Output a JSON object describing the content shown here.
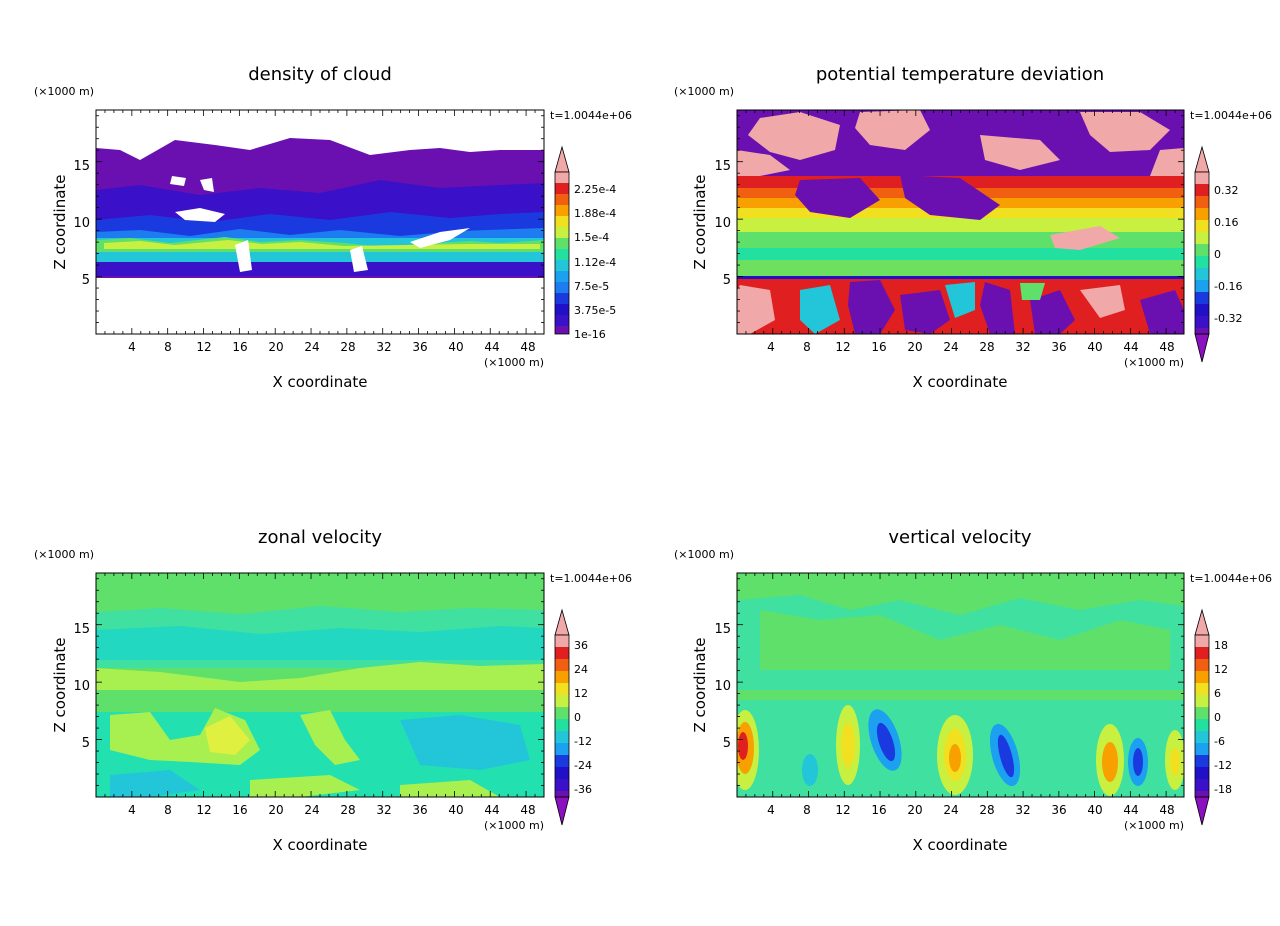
{
  "figure": {
    "panels": [
      {
        "title": "density of cloud",
        "xlabel": "X coordinate",
        "ylabel": "Z coordinate",
        "x_unit": "(×1000 m)",
        "y_unit": "(×1000 m)",
        "time_label": "t=1.0044e+06",
        "xticks": [
          "4",
          "8",
          "12",
          "16",
          "20",
          "24",
          "28",
          "32",
          "36",
          "40",
          "44",
          "48"
        ],
        "yticks": [
          "5",
          "10",
          "15"
        ],
        "colorbar_labels": [
          "2.25e-4",
          "1.88e-4",
          "1.5e-4",
          "1.12e-4",
          "7.5e-5",
          "3.75e-5",
          "1e-16"
        ],
        "colorbar_extend": "max"
      },
      {
        "title": "potential temperature deviation",
        "xlabel": "X coordinate",
        "ylabel": "Z coordinate",
        "x_unit": "(×1000 m)",
        "y_unit": "(×1000 m)",
        "time_label": "t=1.0044e+06",
        "xticks": [
          "4",
          "8",
          "12",
          "16",
          "20",
          "24",
          "28",
          "32",
          "36",
          "40",
          "44",
          "48"
        ],
        "yticks": [
          "5",
          "10",
          "15"
        ],
        "colorbar_labels": [
          "0.32",
          "0.16",
          "0",
          "-0.16",
          "-0.32"
        ],
        "colorbar_extend": "both"
      },
      {
        "title": "zonal velocity",
        "xlabel": "X coordinate",
        "ylabel": "Z coordinate",
        "x_unit": "(×1000 m)",
        "y_unit": "(×1000 m)",
        "time_label": "t=1.0044e+06",
        "xticks": [
          "4",
          "8",
          "12",
          "16",
          "20",
          "24",
          "28",
          "32",
          "36",
          "40",
          "44",
          "48"
        ],
        "yticks": [
          "5",
          "10",
          "15"
        ],
        "colorbar_labels": [
          "36",
          "24",
          "12",
          "0",
          "-12",
          "-24",
          "-36"
        ],
        "colorbar_extend": "both"
      },
      {
        "title": "vertical velocity",
        "xlabel": "X coordinate",
        "ylabel": "Z coordinate",
        "x_unit": "(×1000 m)",
        "y_unit": "(×1000 m)",
        "time_label": "t=1.0044e+06",
        "xticks": [
          "4",
          "8",
          "12",
          "16",
          "20",
          "24",
          "28",
          "32",
          "36",
          "40",
          "44",
          "48"
        ],
        "yticks": [
          "5",
          "10",
          "15"
        ],
        "colorbar_labels": [
          "18",
          "12",
          "6",
          "0",
          "-6",
          "-12",
          "-18"
        ],
        "colorbar_extend": "both"
      }
    ]
  },
  "chart_data": [
    {
      "type": "heatmap",
      "title": "density of cloud",
      "xlabel": "X coordinate",
      "ylabel": "Z coordinate",
      "x_unit": "×1000 m",
      "y_unit": "×1000 m",
      "xlim": [
        0,
        50
      ],
      "ylim": [
        0,
        19.5
      ],
      "x": [
        2,
        6,
        10,
        14,
        18,
        22,
        26,
        30,
        34,
        38,
        42,
        46,
        50
      ],
      "y": [
        5.5,
        6.5,
        7.5,
        8.5,
        9.5,
        10.5,
        11.5,
        12.5,
        13.5,
        14.5,
        15.5,
        16.5
      ],
      "values": [
        [
          3e-05,
          2e-05,
          2e-05,
          4e-05,
          2e-05,
          2e-05,
          4e-05,
          2e-05,
          3e-05,
          2e-05,
          2e-05,
          3e-05,
          2e-05
        ],
        [
          6e-05,
          5e-05,
          6e-05,
          9e-05,
          5e-05,
          5e-05,
          7e-05,
          5e-05,
          6e-05,
          6e-05,
          6e-05,
          7e-05,
          6e-05
        ],
        [
          0.00012,
          0.00014,
          0.00013,
          0.00016,
          0.0001,
          0.00011,
          0.00012,
          9e-05,
          0.00011,
          0.00012,
          0.00011,
          0.00013,
          0.00012
        ],
        [
          7e-05,
          8e-05,
          8e-05,
          9e-05,
          6e-05,
          7e-05,
          7e-05,
          6e-05,
          7e-05,
          8e-05,
          7e-05,
          8e-05,
          7e-05
        ],
        [
          4e-05,
          5e-05,
          4e-05,
          5e-05,
          4e-05,
          4e-05,
          4e-05,
          4e-05,
          5e-05,
          5e-05,
          4e-05,
          5e-05,
          4e-05
        ],
        [
          2e-05,
          2e-05,
          2e-05,
          2e-05,
          2e-05,
          2e-05,
          2e-05,
          2e-05,
          3e-05,
          3e-05,
          2e-05,
          3e-05,
          2e-05
        ],
        [
          1e-05,
          1e-05,
          1e-05,
          1e-05,
          1e-05,
          1e-05,
          1e-05,
          1e-05,
          2e-05,
          2e-05,
          1e-05,
          2e-05,
          1e-05
        ],
        [
          5e-06,
          5e-06,
          5e-06,
          5e-06,
          5e-06,
          5e-06,
          5e-06,
          5e-06,
          8e-06,
          8e-06,
          5e-06,
          8e-06,
          5e-06
        ],
        [
          2e-06,
          2e-06,
          2e-06,
          2e-06,
          2e-06,
          2e-06,
          2e-06,
          2e-06,
          3e-06,
          3e-06,
          2e-06,
          3e-06,
          2e-06
        ],
        [
          1e-06,
          1e-06,
          1e-06,
          1e-06,
          1e-06,
          1e-06,
          1e-06,
          1e-06,
          1e-06,
          1e-06,
          1e-06,
          1e-06,
          1e-06
        ],
        [
          5e-07,
          5e-07,
          5e-07,
          5e-07,
          5e-07,
          5e-07,
          5e-07,
          5e-07,
          5e-07,
          5e-07,
          5e-07,
          5e-07,
          5e-07
        ],
        [
          0,
          0,
          1e-07,
          2e-07,
          1e-07,
          2e-07,
          2e-07,
          1e-07,
          0,
          1e-07,
          0,
          0,
          0
        ]
      ],
      "color_levels": [
        1e-16,
        3.75e-05,
        7.5e-05,
        0.000112,
        0.00015,
        0.000188,
        0.000225
      ],
      "annotation": "t=1.0044e+06"
    },
    {
      "type": "heatmap",
      "title": "potential temperature deviation",
      "xlabel": "X coordinate",
      "ylabel": "Z coordinate",
      "x_unit": "×1000 m",
      "y_unit": "×1000 m",
      "xlim": [
        0,
        50
      ],
      "ylim": [
        0,
        19.5
      ],
      "x": [
        2,
        6,
        10,
        14,
        18,
        22,
        26,
        30,
        34,
        38,
        42,
        46,
        50
      ],
      "y": [
        1,
        3,
        5,
        7,
        9,
        11,
        13,
        15,
        17,
        19
      ],
      "values": [
        [
          0.3,
          0.4,
          -0.3,
          0.2,
          -0.35,
          0.1,
          0.35,
          -0.3,
          0.1,
          -0.2,
          0.3,
          0.4,
          -0.3
        ],
        [
          0.4,
          0.2,
          0.35,
          -0.35,
          0.25,
          -0.3,
          0.2,
          0.3,
          -0.35,
          0.1,
          -0.2,
          0.35,
          0.3
        ],
        [
          0.2,
          0.3,
          0.2,
          0.1,
          0.0,
          -0.1,
          0.1,
          0.0,
          0.05,
          0.1,
          -0.05,
          0.2,
          0.1
        ],
        [
          0.05,
          0.0,
          0.1,
          0.05,
          0.0,
          0.05,
          0.1,
          0.05,
          0.0,
          0.05,
          0.0,
          0.05,
          0.1
        ],
        [
          0.1,
          0.05,
          0.0,
          0.1,
          0.05,
          0.1,
          0.05,
          0.1,
          0.0,
          0.05,
          0.1,
          0.05,
          0.0
        ],
        [
          0.2,
          0.15,
          0.3,
          0.2,
          0.1,
          0.2,
          0.3,
          0.25,
          0.2,
          0.15,
          0.2,
          0.25,
          0.2
        ],
        [
          0.3,
          0.35,
          0.25,
          -0.3,
          0.3,
          0.25,
          0.3,
          0.35,
          0.3,
          0.25,
          0.3,
          0.3,
          0.35
        ],
        [
          0.4,
          -0.35,
          0.4,
          -0.4,
          -0.35,
          0.4,
          0.4,
          -0.35,
          -0.4,
          0.35,
          0.4,
          -0.3,
          0.4
        ],
        [
          -0.4,
          0.4,
          0.45,
          0.4,
          -0.4,
          -0.35,
          -0.4,
          -0.4,
          -0.4,
          -0.3,
          -0.35,
          0.4,
          -0.3
        ],
        [
          -0.35,
          -0.4,
          0.4,
          -0.35,
          -0.4,
          0.45,
          0.4,
          -0.35,
          -0.4,
          -0.35,
          -0.4,
          -0.4,
          -0.35
        ]
      ],
      "color_levels": [
        -0.32,
        -0.16,
        0,
        0.16,
        0.32
      ],
      "annotation": "t=1.0044e+06"
    },
    {
      "type": "heatmap",
      "title": "zonal velocity",
      "xlabel": "X coordinate",
      "ylabel": "Z coordinate",
      "x_unit": "×1000 m",
      "y_unit": "×1000 m",
      "xlim": [
        0,
        50
      ],
      "ylim": [
        0,
        19.5
      ],
      "x": [
        2,
        6,
        10,
        14,
        18,
        22,
        26,
        30,
        34,
        38,
        42,
        46,
        50
      ],
      "y": [
        1,
        3,
        5,
        7,
        9,
        11,
        13,
        15,
        17,
        19
      ],
      "values": [
        [
          2,
          0,
          -4,
          -3,
          -6,
          -2,
          4,
          0,
          -6,
          -8,
          -4,
          2,
          0
        ],
        [
          4,
          6,
          2,
          4,
          8,
          2,
          6,
          4,
          -8,
          -10,
          -6,
          -4,
          -2
        ],
        [
          6,
          8,
          2,
          10,
          12,
          4,
          4,
          8,
          -6,
          -8,
          -4,
          -2,
          0
        ],
        [
          2,
          4,
          6,
          8,
          4,
          2,
          0,
          4,
          -2,
          -4,
          -2,
          0,
          2
        ],
        [
          6,
          8,
          6,
          4,
          2,
          0,
          2,
          4,
          6,
          6,
          4,
          6,
          8
        ],
        [
          4,
          6,
          8,
          6,
          8,
          6,
          8,
          10,
          6,
          8,
          6,
          8,
          6
        ],
        [
          -2,
          -4,
          -2,
          0,
          -2,
          -4,
          -2,
          0,
          -2,
          -4,
          -6,
          -2,
          -4
        ],
        [
          -6,
          -8,
          -6,
          -8,
          -6,
          -4,
          -6,
          -8,
          -6,
          -8,
          -6,
          -8,
          -6
        ],
        [
          0,
          -2,
          0,
          2,
          -2,
          0,
          2,
          0,
          -2,
          0,
          2,
          0,
          -2
        ],
        [
          2,
          4,
          2,
          0,
          2,
          4,
          2,
          0,
          2,
          4,
          2,
          0,
          2
        ]
      ],
      "color_levels": [
        -36,
        -24,
        -12,
        0,
        12,
        24,
        36
      ],
      "annotation": "t=1.0044e+06"
    },
    {
      "type": "heatmap",
      "title": "vertical velocity",
      "xlabel": "X coordinate",
      "ylabel": "Z coordinate",
      "x_unit": "×1000 m",
      "y_unit": "×1000 m",
      "xlim": [
        0,
        50
      ],
      "ylim": [
        0,
        19.5
      ],
      "x": [
        2,
        6,
        10,
        14,
        18,
        22,
        26,
        30,
        34,
        38,
        42,
        46,
        50
      ],
      "y": [
        1,
        3,
        5,
        7,
        9,
        11,
        13,
        15,
        17,
        19
      ],
      "values": [
        [
          6,
          0,
          -2,
          2,
          -8,
          0,
          6,
          -4,
          0,
          2,
          8,
          -6,
          4
        ],
        [
          12,
          2,
          -4,
          8,
          -14,
          0,
          12,
          -12,
          -2,
          2,
          14,
          -12,
          6
        ],
        [
          10,
          2,
          -2,
          10,
          -12,
          2,
          14,
          -14,
          0,
          -2,
          8,
          -10,
          4
        ],
        [
          6,
          0,
          -2,
          6,
          -6,
          0,
          6,
          -6,
          0,
          0,
          2,
          -4,
          2
        ],
        [
          2,
          0,
          0,
          2,
          -2,
          0,
          2,
          -2,
          0,
          0,
          0,
          -2,
          0
        ],
        [
          0,
          0,
          0,
          0,
          0,
          0,
          0,
          0,
          0,
          0,
          0,
          0,
          0
        ],
        [
          0,
          0,
          0,
          0,
          0,
          0,
          0,
          0,
          0,
          0,
          0,
          0,
          0
        ],
        [
          0,
          0,
          0,
          0,
          0,
          0,
          0,
          0,
          0,
          0,
          0,
          0,
          0
        ],
        [
          0,
          0,
          0,
          0,
          0,
          0,
          0,
          0,
          0,
          0,
          0,
          0,
          0
        ],
        [
          0,
          0,
          0,
          0,
          0,
          0,
          0,
          0,
          0,
          0,
          0,
          0,
          0
        ]
      ],
      "color_levels": [
        -18,
        -12,
        -6,
        0,
        6,
        12,
        18
      ],
      "annotation": "t=1.0044e+06"
    }
  ]
}
